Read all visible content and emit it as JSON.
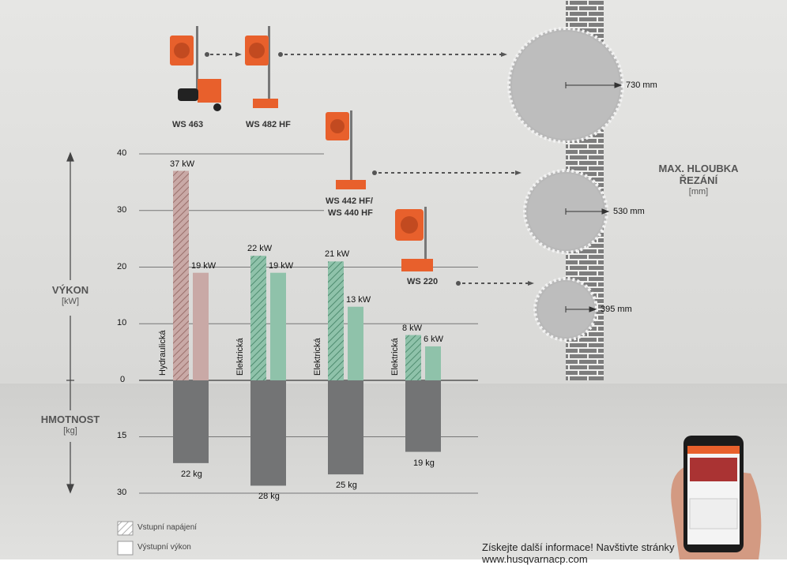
{
  "chart_data": {
    "type": "bar",
    "power_axis": {
      "title": "VÝKON",
      "unit": "[kW]",
      "ticks": [
        0,
        10,
        20,
        30,
        40
      ],
      "ylim": [
        0,
        40
      ]
    },
    "weight_axis": {
      "title": "HMOTNOST",
      "unit": "[kg]",
      "ticks": [
        15,
        30
      ],
      "ylim": [
        0,
        30
      ]
    },
    "groups": [
      {
        "drive": "Hydraulická",
        "input_kw": 37,
        "output_kw": 19,
        "weight_kg": 22,
        "input_label": "37 kW",
        "output_label": "19 kW",
        "weight_label": "22 kg",
        "input_color": "#c9a9a6",
        "output_color": "#c9a9a6"
      },
      {
        "drive": "Elektrická",
        "input_kw": 22,
        "output_kw": 19,
        "weight_kg": 28,
        "input_label": "22 kW",
        "output_label": "19 kW",
        "weight_label": "28 kg",
        "input_color": "#8fc2aa",
        "output_color": "#8fc2aa"
      },
      {
        "drive": "Elektrická",
        "input_kw": 21,
        "output_kw": 13,
        "weight_kg": 25,
        "input_label": "21 kW",
        "output_label": "13 kW",
        "weight_label": "25 kg",
        "input_color": "#8fc2aa",
        "output_color": "#8fc2aa"
      },
      {
        "drive": "Elektrická",
        "input_kw": 8,
        "output_kw": 6,
        "weight_kg": 19,
        "input_label": "8 kW",
        "output_label": "6 kW",
        "weight_label": "19 kg",
        "input_color": "#8fc2aa",
        "output_color": "#8fc2aa"
      }
    ],
    "legend": [
      {
        "label": "Vstupní napájení",
        "pattern": "hatched"
      },
      {
        "label": "Výstupní výkon",
        "pattern": "solid"
      }
    ],
    "models": [
      "WS 463",
      "WS 482 HF",
      "WS 442 HF/",
      "WS 440 HF",
      "WS 220"
    ],
    "cut_depth": {
      "title_line1": "MAX. HLOUBKA",
      "title_line2": "ŘEZÁNÍ",
      "unit": "[mm]",
      "blades": [
        {
          "value": 730,
          "label": "730 mm"
        },
        {
          "value": 530,
          "label": "530 mm"
        },
        {
          "value": 395,
          "label": "395 mm"
        }
      ]
    }
  },
  "footer": {
    "line1": "Získejte další informace! Navštivte stránky",
    "line2": "www.husqvarnacp.com"
  },
  "colors": {
    "weight_bar": "#737475",
    "accent_orange": "#e8602c",
    "wall": "#8a8a8a"
  }
}
